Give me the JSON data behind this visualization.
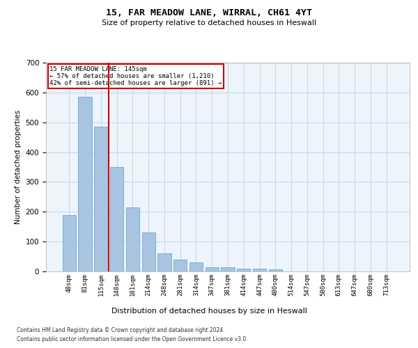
{
  "title1": "15, FAR MEADOW LANE, WIRRAL, CH61 4YT",
  "title2": "Size of property relative to detached houses in Heswall",
  "xlabel": "Distribution of detached houses by size in Heswall",
  "ylabel": "Number of detached properties",
  "categories": [
    "48sqm",
    "81sqm",
    "115sqm",
    "148sqm",
    "181sqm",
    "214sqm",
    "248sqm",
    "281sqm",
    "314sqm",
    "347sqm",
    "381sqm",
    "414sqm",
    "447sqm",
    "480sqm",
    "514sqm",
    "547sqm",
    "580sqm",
    "613sqm",
    "647sqm",
    "680sqm",
    "713sqm"
  ],
  "values": [
    190,
    585,
    485,
    350,
    215,
    130,
    60,
    40,
    30,
    15,
    15,
    10,
    10,
    7,
    0,
    0,
    0,
    0,
    0,
    0,
    0
  ],
  "bar_color": "#a8c4e0",
  "bar_edge_color": "#6fa8d4",
  "grid_color": "#c8d8e8",
  "bg_color": "#eef4fb",
  "vline_x": 2.5,
  "vline_color": "#cc0000",
  "annotation_text": "15 FAR MEADOW LANE: 145sqm\n← 57% of detached houses are smaller (1,210)\n42% of semi-detached houses are larger (891) →",
  "annotation_box_color": "#cc0000",
  "ylim": [
    0,
    700
  ],
  "yticks": [
    0,
    100,
    200,
    300,
    400,
    500,
    600,
    700
  ],
  "footer1": "Contains HM Land Registry data © Crown copyright and database right 2024.",
  "footer2": "Contains public sector information licensed under the Open Government Licence v3.0."
}
